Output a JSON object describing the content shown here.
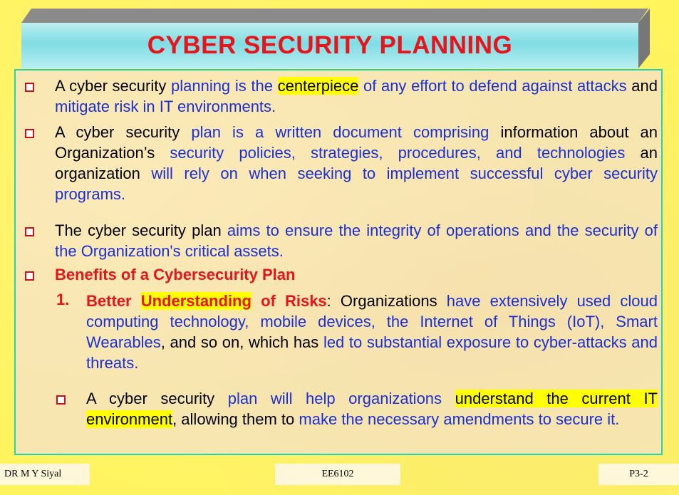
{
  "title": "CYBER SECURITY PLANNING",
  "bullets": [
    {
      "parts": [
        {
          "t": "A cyber security ",
          "c": "k"
        },
        {
          "t": "planning is the ",
          "c": "b"
        },
        {
          "t": "centerpiece",
          "c": "hl"
        },
        {
          "t": " of any effort to defend against attacks",
          "c": "b"
        },
        {
          "t": " and ",
          "c": "k"
        },
        {
          "t": "mitigate risk in IT environments.",
          "c": "b"
        }
      ]
    },
    {
      "parts": [
        {
          "t": "A cyber security ",
          "c": "k"
        },
        {
          "t": "plan is a written document comprising ",
          "c": "b"
        },
        {
          "t": "information about an Organization’s ",
          "c": "k"
        },
        {
          "t": "security policies, strategies, procedures, and technologies",
          "c": "b"
        },
        {
          "t": " an organization ",
          "c": "k"
        },
        {
          "t": "will rely on when seeking to implement successful cyber security programs.",
          "c": "b"
        }
      ]
    },
    {
      "parts": [
        {
          "t": "The cyber security plan ",
          "c": "k"
        },
        {
          "t": "aims to ensure the integrity of operations and the security of the Organization's critical assets.",
          "c": "b"
        }
      ]
    },
    {
      "parts": [
        {
          "t": "Benefits of a Cybersecurity Plan",
          "c": "red"
        }
      ]
    }
  ],
  "numbered": {
    "number": "1.",
    "parts": [
      {
        "t": "Better ",
        "c": "red"
      },
      {
        "t": "Understanding",
        "c": "redhl"
      },
      {
        "t": " of Risks",
        "c": "red"
      },
      {
        "t": ":  Organizations ",
        "c": "k"
      },
      {
        "t": "have extensively used cloud computing technology, mobile devices, the Internet of Things (IoT), Smart Wearables",
        "c": "b"
      },
      {
        "t": ", and so on, which has ",
        "c": "k"
      },
      {
        "t": "led to substantial exposure to cyber-attacks and threats.",
        "c": "b"
      }
    ]
  },
  "sub_bullet": {
    "parts": [
      {
        "t": "A cyber security ",
        "c": "k"
      },
      {
        "t": "plan will help organizations ",
        "c": "b"
      },
      {
        "t": "understand the current IT environment",
        "c": "hl"
      },
      {
        "t": ", allowing them to ",
        "c": "k"
      },
      {
        "t": "make the necessary amendments to secure it.",
        "c": "b"
      }
    ]
  },
  "footer": {
    "left": "DR M Y Siyal",
    "center": "EE6102",
    "right": "P3-2"
  },
  "colors": {
    "background": "#fff45c",
    "title": "#e8141c",
    "blue_text": "#1a2fd6",
    "highlight": "#ffff00",
    "border": "#27d2b4"
  }
}
